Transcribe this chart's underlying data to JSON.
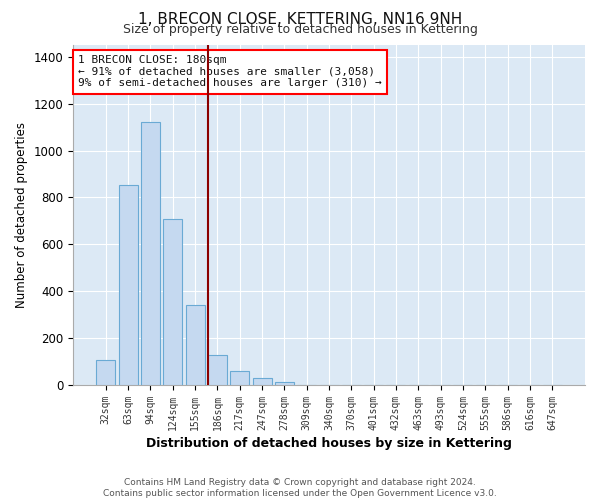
{
  "title": "1, BRECON CLOSE, KETTERING, NN16 9NH",
  "subtitle": "Size of property relative to detached houses in Kettering",
  "xlabel": "Distribution of detached houses by size in Kettering",
  "ylabel": "Number of detached properties",
  "bar_labels": [
    "32sqm",
    "63sqm",
    "94sqm",
    "124sqm",
    "155sqm",
    "186sqm",
    "217sqm",
    "247sqm",
    "278sqm",
    "309sqm",
    "340sqm",
    "370sqm",
    "401sqm",
    "432sqm",
    "463sqm",
    "493sqm",
    "524sqm",
    "555sqm",
    "586sqm",
    "616sqm",
    "647sqm"
  ],
  "bar_values": [
    105,
    855,
    1120,
    710,
    340,
    130,
    60,
    30,
    15,
    0,
    0,
    0,
    0,
    0,
    0,
    0,
    0,
    0,
    0,
    0,
    0
  ],
  "bar_color": "#c5d9f0",
  "bar_edge_color": "#6aaad4",
  "reference_line_index": 5,
  "annotation_title": "1 BRECON CLOSE: 180sqm",
  "annotation_line1": "← 91% of detached houses are smaller (3,058)",
  "annotation_line2": "9% of semi-detached houses are larger (310) →",
  "ylim": [
    0,
    1450
  ],
  "yticks": [
    0,
    200,
    400,
    600,
    800,
    1000,
    1200,
    1400
  ],
  "footer1": "Contains HM Land Registry data © Crown copyright and database right 2024.",
  "footer2": "Contains public sector information licensed under the Open Government Licence v3.0.",
  "bg_color": "#ffffff",
  "plot_bg_color": "#dce9f5",
  "grid_color": "#ffffff",
  "ref_line_color": "#8b0000"
}
